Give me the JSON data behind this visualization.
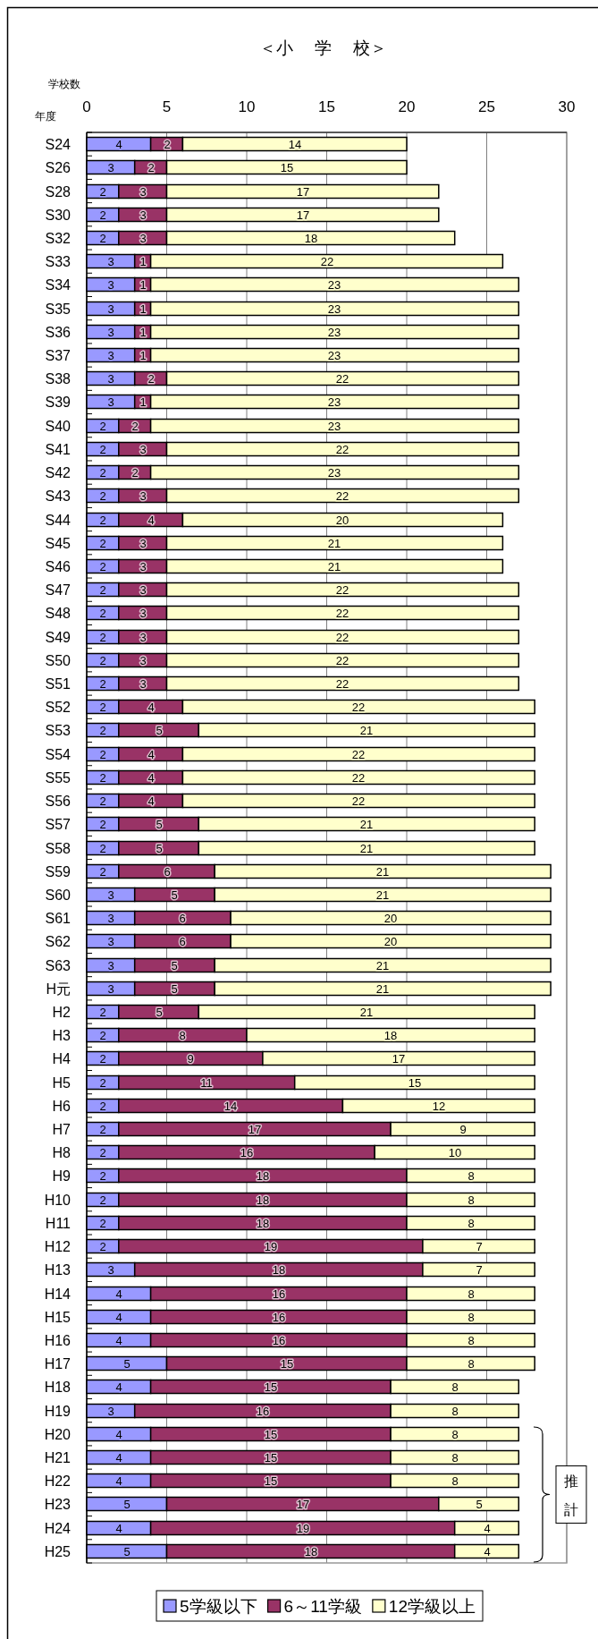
{
  "chart_data": {
    "type": "bar",
    "orientation": "horizontal",
    "stacked": true,
    "title": "＜小　 学　 校＞",
    "xlabel": "学校数",
    "ylabel": "年度",
    "categories": [
      "S24",
      "S26",
      "S28",
      "S30",
      "S32",
      "S33",
      "S34",
      "S35",
      "S36",
      "S37",
      "S38",
      "S39",
      "S40",
      "S41",
      "S42",
      "S43",
      "S44",
      "S45",
      "S46",
      "S47",
      "S48",
      "S49",
      "S50",
      "S51",
      "S52",
      "S53",
      "S54",
      "S55",
      "S56",
      "S57",
      "S58",
      "S59",
      "S60",
      "S61",
      "S62",
      "S63",
      "H元",
      "H2",
      "H3",
      "H4",
      "H5",
      "H6",
      "H7",
      "H8",
      "H9",
      "H10",
      "H11",
      "H12",
      "H13",
      "H14",
      "H15",
      "H16",
      "H17",
      "H18",
      "H19",
      "H20",
      "H21",
      "H22",
      "H23",
      "H24",
      "H25"
    ],
    "series": [
      {
        "name": "5学級以下",
        "color": "#9999ff",
        "values": [
          4,
          3,
          2,
          2,
          2,
          3,
          3,
          3,
          3,
          3,
          3,
          3,
          2,
          2,
          2,
          2,
          2,
          2,
          2,
          2,
          2,
          2,
          2,
          2,
          2,
          2,
          2,
          2,
          2,
          2,
          2,
          2,
          3,
          3,
          3,
          3,
          3,
          2,
          2,
          2,
          2,
          2,
          2,
          2,
          2,
          2,
          2,
          2,
          3,
          4,
          4,
          4,
          5,
          4,
          3,
          4,
          4,
          4,
          5,
          4,
          5
        ]
      },
      {
        "name": "6～11学級",
        "color": "#993366",
        "values": [
          2,
          2,
          3,
          3,
          3,
          1,
          1,
          1,
          1,
          1,
          2,
          1,
          2,
          3,
          2,
          3,
          4,
          3,
          3,
          3,
          3,
          3,
          3,
          3,
          4,
          5,
          4,
          4,
          4,
          5,
          5,
          6,
          5,
          6,
          6,
          5,
          5,
          5,
          8,
          9,
          11,
          14,
          17,
          16,
          18,
          18,
          18,
          19,
          18,
          16,
          16,
          16,
          15,
          15,
          16,
          15,
          15,
          15,
          17,
          19,
          18
        ]
      },
      {
        "name": "12学級以上",
        "color": "#ffffcc",
        "values": [
          14,
          15,
          17,
          17,
          18,
          22,
          23,
          23,
          23,
          23,
          22,
          23,
          23,
          22,
          23,
          22,
          20,
          21,
          21,
          22,
          22,
          22,
          22,
          22,
          22,
          21,
          22,
          22,
          22,
          21,
          21,
          21,
          21,
          20,
          20,
          21,
          21,
          21,
          18,
          17,
          15,
          12,
          9,
          10,
          8,
          8,
          8,
          7,
          7,
          8,
          8,
          8,
          8,
          8,
          8,
          8,
          8,
          8,
          5,
          4,
          4
        ]
      }
    ],
    "xlim": [
      0,
      30
    ],
    "xticks": [
      0,
      5,
      10,
      15,
      20,
      25,
      30
    ],
    "grid": "x",
    "data_labels": true,
    "legend": "bottom",
    "annotations": [
      "推計"
    ]
  }
}
